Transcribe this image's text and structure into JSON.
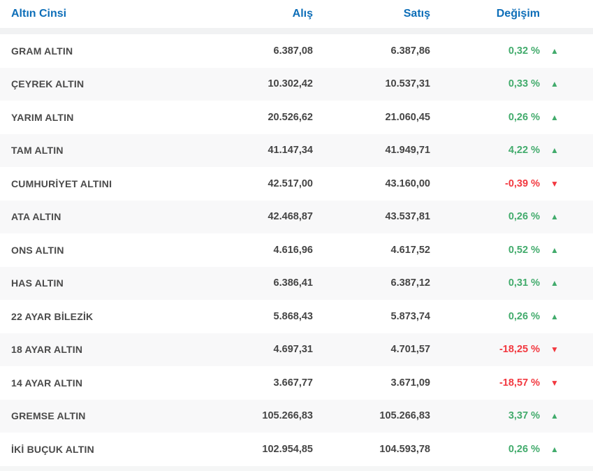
{
  "table": {
    "columns": {
      "type": "Altın Cinsi",
      "buy": "Alış",
      "sell": "Satış",
      "change": "Değişim"
    },
    "rows": [
      {
        "type": "GRAM ALTIN",
        "buy": "6.387,08",
        "sell": "6.387,86",
        "change": "0,32 %",
        "direction": "up"
      },
      {
        "type": "ÇEYREK ALTIN",
        "buy": "10.302,42",
        "sell": "10.537,31",
        "change": "0,33 %",
        "direction": "up"
      },
      {
        "type": "YARIM ALTIN",
        "buy": "20.526,62",
        "sell": "21.060,45",
        "change": "0,26 %",
        "direction": "up"
      },
      {
        "type": "TAM ALTIN",
        "buy": "41.147,34",
        "sell": "41.949,71",
        "change": "4,22 %",
        "direction": "up"
      },
      {
        "type": "CUMHURİYET ALTINI",
        "buy": "42.517,00",
        "sell": "43.160,00",
        "change": "-0,39 %",
        "direction": "down"
      },
      {
        "type": "ATA ALTIN",
        "buy": "42.468,87",
        "sell": "43.537,81",
        "change": "0,26 %",
        "direction": "up"
      },
      {
        "type": "ONS ALTIN",
        "buy": "4.616,96",
        "sell": "4.617,52",
        "change": "0,52 %",
        "direction": "up"
      },
      {
        "type": "HAS ALTIN",
        "buy": "6.386,41",
        "sell": "6.387,12",
        "change": "0,31 %",
        "direction": "up"
      },
      {
        "type": "22 AYAR BİLEZİK",
        "buy": "5.868,43",
        "sell": "5.873,74",
        "change": "0,26 %",
        "direction": "up"
      },
      {
        "type": "18 AYAR ALTIN",
        "buy": "4.697,31",
        "sell": "4.701,57",
        "change": "-18,25 %",
        "direction": "down"
      },
      {
        "type": "14 AYAR ALTIN",
        "buy": "3.667,77",
        "sell": "3.671,09",
        "change": "-18,57 %",
        "direction": "down"
      },
      {
        "type": "GREMSE ALTIN",
        "buy": "105.266,83",
        "sell": "105.266,83",
        "change": "3,37 %",
        "direction": "up"
      },
      {
        "type": "İKİ BUÇUK ALTIN",
        "buy": "102.954,85",
        "sell": "104.593,78",
        "change": "0,26 %",
        "direction": "up"
      }
    ]
  },
  "icons": {
    "up": "▲",
    "down": "▼"
  },
  "colors": {
    "header_blue": "#0d6eb8",
    "positive_green": "#42ab6c",
    "negative_red": "#f2383f",
    "row_alt_gray": "#f8f8f9",
    "divider_gray": "#f1f2f3",
    "label_dark": "#4a4a4a"
  }
}
